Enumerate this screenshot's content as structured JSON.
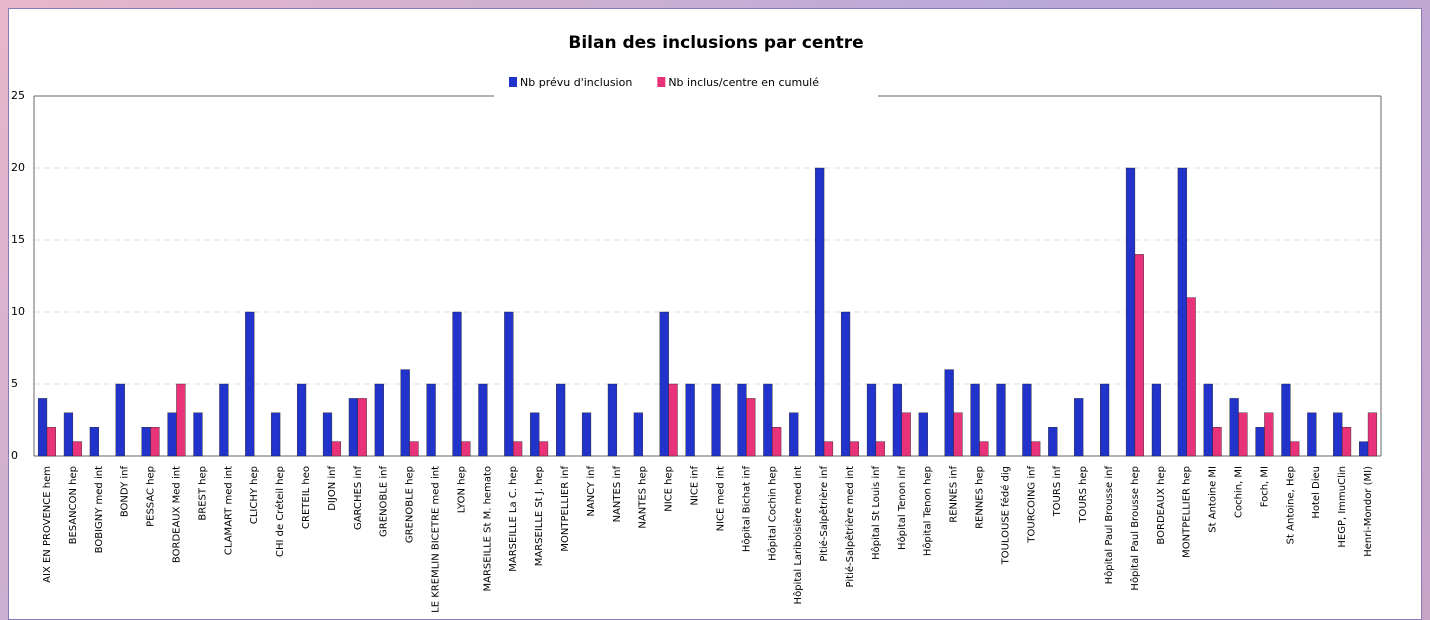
{
  "chart_data": {
    "type": "bar",
    "title": "Bilan des inclusions par centre",
    "categories": [
      "AIX EN PROVENCE hem",
      "BESANCON hep",
      "BOBIGNY med int",
      "BONDY inf",
      "PESSAC hep",
      "BORDEAUX Med int",
      "BREST hep",
      "CLAMART med int",
      "CLICHY hep",
      "CHI de Créteil hep",
      "CRETEIL heo",
      "DIJON inf",
      "GARCHES inf",
      "GRENOBLE inf",
      "GRENOBLE hep",
      "LE KREMLIN BICETRE med int",
      "LYON hep",
      "MARSEILLE St M. hemato",
      "MARSEILLE La C. hep",
      "MARSEILLE St J. hep",
      "MONTPELLIER inf",
      "NANCY inf",
      "NANTES inf",
      "NANTES hep",
      "NICE hep",
      "NICE inf",
      "NICE med int",
      "Hôpital Bichat inf",
      "Hôpital Cochin hep",
      "Hôpital Lariboisière med int",
      "Pitié-Salpêtrière inf",
      "Pitié-Salpêtrière med int",
      "Hôpital St Louis inf",
      "Hôpital Tenon inf",
      "Hôpital Tenon hep",
      "RENNES inf",
      "RENNES hep",
      "TOULOUSE fédé dig",
      "TOURCOING inf",
      "TOURS inf",
      "TOURS hep",
      "Hôpital Paul Brousse inf",
      "Hôpital Paul Brousse hep",
      "BORDEAUX hep",
      "MONTPELLIER hep",
      "St Antoine MI",
      "Cochin, MI",
      "Foch, MI",
      "St Antoine, Hep",
      "Hotel Dieu",
      "HEGP, ImmuClin",
      "Henri-Mondor (MI)"
    ],
    "series": [
      {
        "name": "Nb prévu d'inclusion",
        "color": "#2233cc",
        "values": [
          4,
          3,
          2,
          5,
          2,
          3,
          3,
          5,
          10,
          3,
          5,
          3,
          4,
          5,
          6,
          5,
          10,
          5,
          10,
          3,
          5,
          3,
          5,
          3,
          10,
          5,
          5,
          5,
          5,
          3,
          20,
          10,
          5,
          5,
          3,
          6,
          5,
          5,
          5,
          2,
          4,
          5,
          20,
          5,
          20,
          5,
          4,
          2,
          5,
          3,
          3,
          1
        ]
      },
      {
        "name": "Nb inclus/centre en cumulé",
        "color": "#e8337a",
        "values": [
          2,
          1,
          0,
          0,
          2,
          5,
          0,
          0,
          0,
          0,
          0,
          1,
          4,
          0,
          1,
          0,
          1,
          0,
          1,
          1,
          0,
          0,
          0,
          0,
          5,
          0,
          0,
          4,
          2,
          0,
          1,
          1,
          1,
          3,
          0,
          3,
          1,
          0,
          1,
          0,
          0,
          0,
          14,
          0,
          11,
          2,
          3,
          3,
          1,
          0,
          2,
          3
        ]
      }
    ],
    "ylim": [
      0,
      25
    ],
    "yticks": [
      0,
      5,
      10,
      15,
      20,
      25
    ],
    "grid": true,
    "legend": "top"
  }
}
